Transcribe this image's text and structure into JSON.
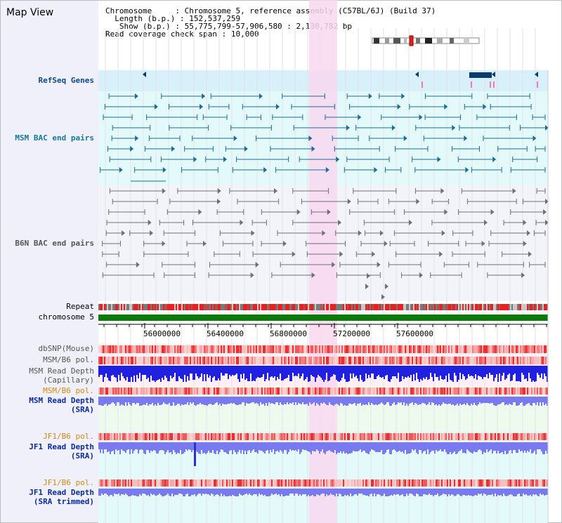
{
  "title": "Map View",
  "info": {
    "chromosome_key": "Chromosome",
    "chromosome_val": "Chromosome 5, reference assembly (C57BL/6J) (Build 37)",
    "length_key": "Length (b.p.)",
    "length_val": "152,537,259",
    "show_key": "Show (b.p.)",
    "show_val": "55,775,799-57,906,580 : 2,130,782 bp",
    "coverage_key": "Read coverage check span",
    "coverage_val": "10,000"
  },
  "tracks": {
    "refseq": "RefSeq Genes",
    "msm_bac": "MSM BAC end pairs",
    "b6n_bac": "B6N BAC end pairs",
    "repeat": "Repeat",
    "chromosome": "chromosome 5",
    "dbsnp": "dbSNP(Mouse)",
    "msm_b6_pol_1": "MSM/B6 pol.",
    "msm_read_depth_cap_1": "MSM Read Depth",
    "msm_read_depth_cap_2": "(Capillary)",
    "msm_b6_pol_2": "MSM/B6 pol.",
    "msm_read_depth_sra_1": "MSM Read Depth",
    "msm_read_depth_sra_2": "(SRA)",
    "jf1_b6_pol_1": "JF1/B6 pol.",
    "jf1_read_depth_sra_1": "JF1 Read Depth",
    "jf1_read_depth_sra_2": "(SRA)",
    "jf1_b6_pol_2": "JF1/B6 pol.",
    "jf1_read_depth_trim_1": "JF1 Read Depth",
    "jf1_read_depth_trim_2": "(SRA trimmed)"
  },
  "axis": {
    "ticks": [
      "56000000",
      "56400000",
      "56800000",
      "57200000",
      "57600000"
    ]
  },
  "colors": {
    "refseq_bg": "#d8f0fa",
    "msm_bg": "#e4fafa",
    "b6n_bg": "#f3f3fa",
    "highlight": "#f8d8f0",
    "chromosome_bar": "#0a7a0a",
    "gene_teal": "#1a6e96",
    "gene_gray": "#707070",
    "depth_blue": "#2020e0",
    "depth_lightblue": "#7a7af0"
  }
}
